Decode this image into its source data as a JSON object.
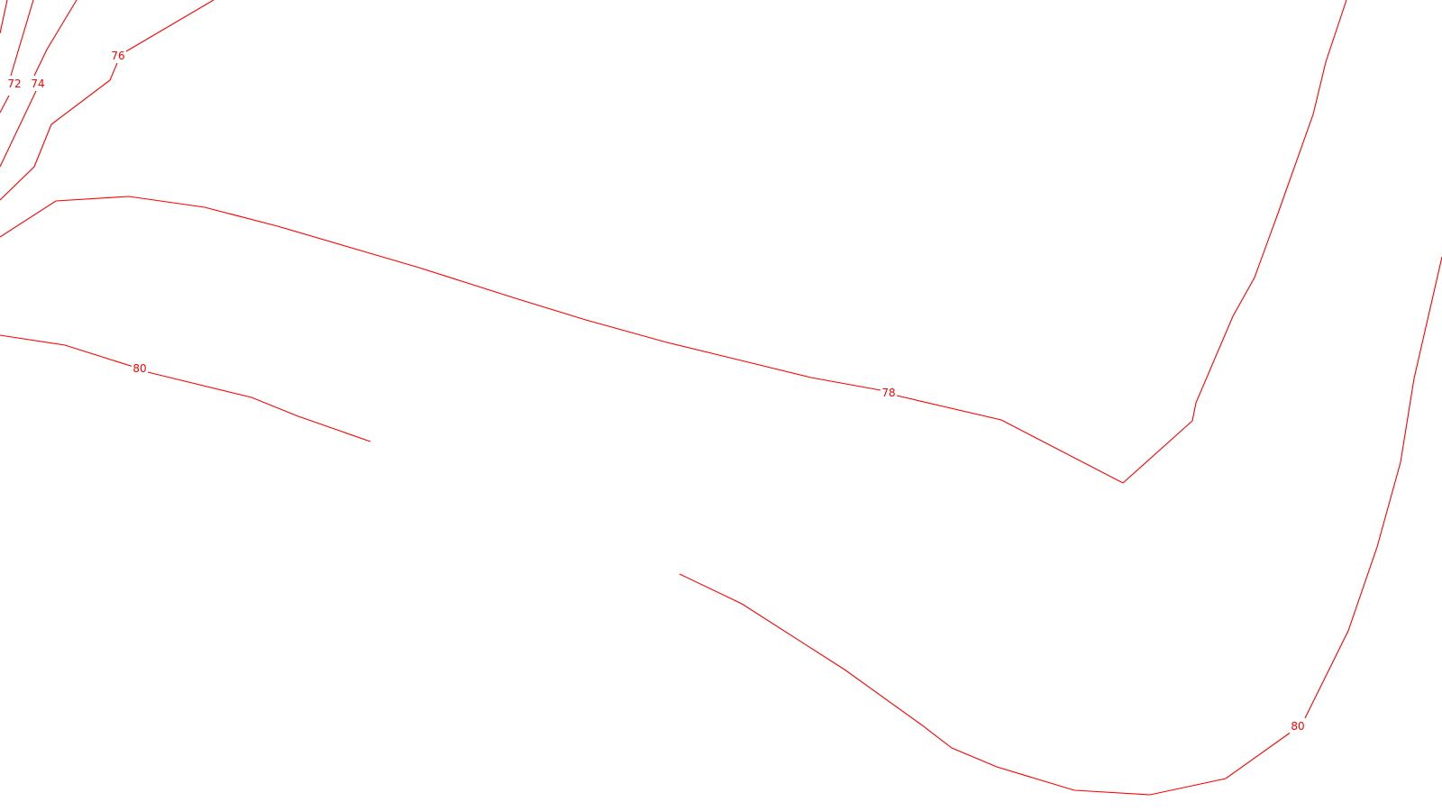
{
  "map": {
    "background_color": "#ffffff",
    "contour_color": "#ff0000",
    "contours": [
      {
        "elevation": "72",
        "label": "72"
      },
      {
        "elevation": "74",
        "label": "74"
      },
      {
        "elevation": "76",
        "label": "76"
      },
      {
        "elevation": "78",
        "label": "78"
      },
      {
        "elevation": "80",
        "label": "80"
      },
      {
        "elevation": "80",
        "label": "80"
      }
    ]
  }
}
